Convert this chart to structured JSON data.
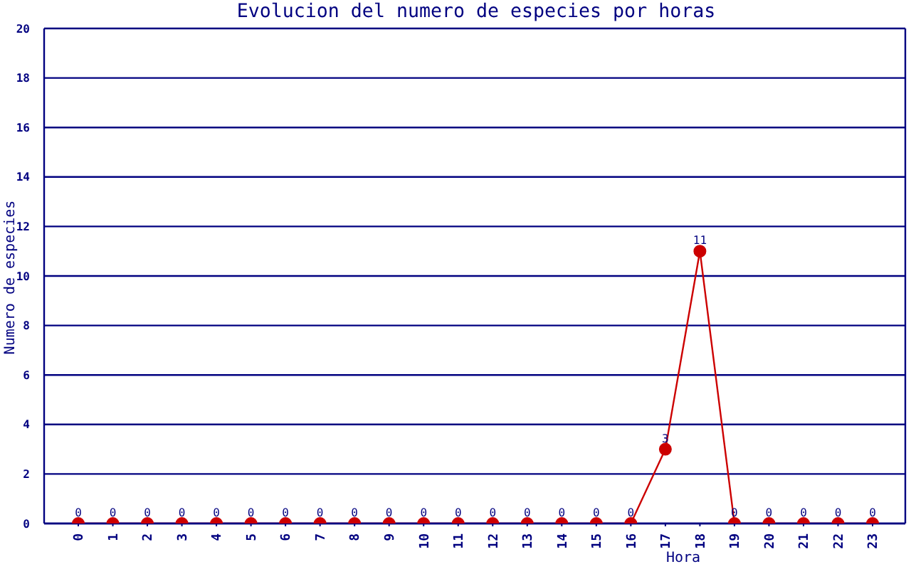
{
  "chart_data": {
    "type": "line",
    "title": "Evolucion del numero de especies por horas",
    "xlabel": "Hora",
    "ylabel": "Numero de especies",
    "categories": [
      "0",
      "1",
      "2",
      "3",
      "4",
      "5",
      "6",
      "7",
      "8",
      "9",
      "10",
      "11",
      "12",
      "13",
      "14",
      "15",
      "16",
      "17",
      "18",
      "19",
      "20",
      "21",
      "22",
      "23"
    ],
    "series": [
      {
        "color": "#cc0000",
        "values": [
          0,
          0,
          0,
          0,
          0,
          0,
          0,
          0,
          0,
          0,
          0,
          0,
          0,
          0,
          0,
          0,
          0,
          3,
          11,
          0,
          0,
          0,
          0,
          0
        ]
      }
    ],
    "ylim": [
      0,
      20
    ],
    "yticks": [
      0,
      2,
      4,
      6,
      8,
      10,
      12,
      14,
      16,
      18,
      20
    ],
    "grid": "y",
    "marker": "circle",
    "line_style": "solid",
    "data_labels": true
  }
}
